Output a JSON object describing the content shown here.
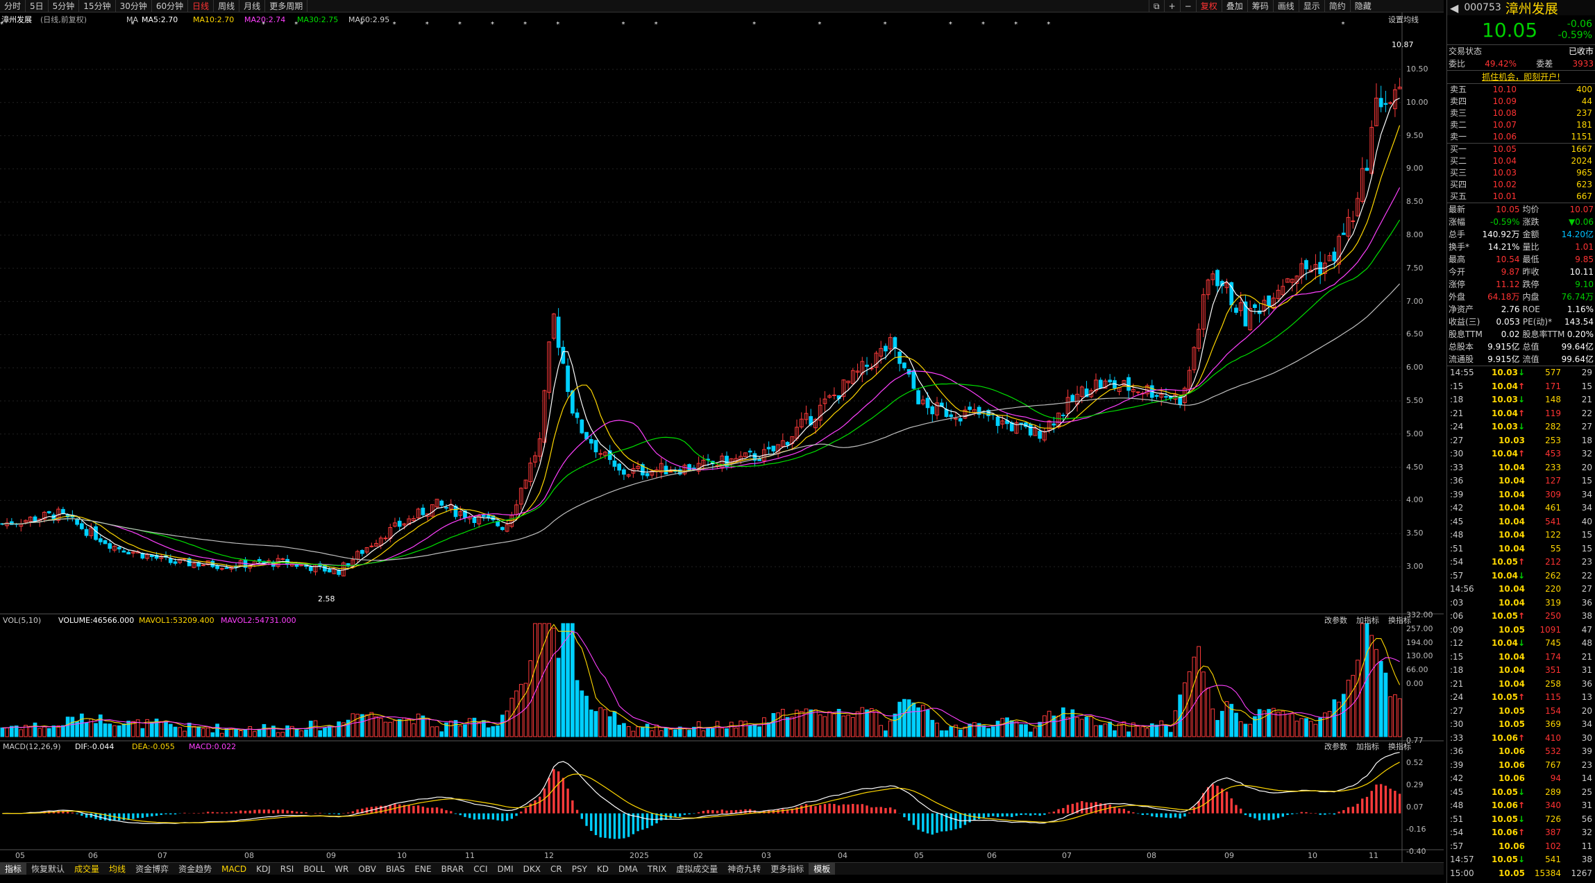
{
  "period_tabs": [
    "分时",
    "5日",
    "5分钟",
    "15分钟",
    "30分钟",
    "60分钟",
    "日线",
    "周线",
    "月线",
    "更多周期"
  ],
  "active_period": "日线",
  "toolbar_right": [
    "复权",
    "叠加",
    "筹码",
    "画线",
    "显示",
    "简约",
    "隐藏"
  ],
  "chart_header": {
    "name": "漳州发展",
    "mode": "(日线,前复权)",
    "ma_label": "MA",
    "ma5": "MA5:2.70",
    "ma10": "MA10:2.70",
    "ma20": "MA20:2.74",
    "ma30": "MA30:2.75",
    "ma60": "MA60:2.95",
    "settings": "设置均线"
  },
  "price_axis": [
    "10.50",
    "10.00",
    "9.50",
    "9.00",
    "8.50",
    "8.00",
    "7.50",
    "7.00",
    "6.50",
    "6.00",
    "5.50",
    "5.00",
    "4.50",
    "4.00",
    "3.50",
    "3.00"
  ],
  "high_marker": "10.87",
  "low_marker": "2.58",
  "vol_header": {
    "name": "VOL(5,10)",
    "volume": "VOLUME:46566.000",
    "mavol1": "MAVOL1:53209.400",
    "mavol2": "MAVOL2:54731.000"
  },
  "vol_axis": [
    "332.00",
    "257.00",
    "194.00",
    "130.00",
    "66.00",
    "0.00"
  ],
  "macd_header": {
    "name": "MACD(12,26,9)",
    "dif": "DIF:-0.044",
    "dea": "DEA:-0.055",
    "macd": "MACD:0.022"
  },
  "macd_axis": [
    "0.77",
    "0.52",
    "0.29",
    "0.07",
    "-0.16",
    "-0.40"
  ],
  "panel_tools": [
    "改参数",
    "加指标",
    "换指标"
  ],
  "x_axis": [
    "05",
    "06",
    "07",
    "08",
    "09",
    "10",
    "11",
    "12",
    "2025",
    "02",
    "03",
    "04",
    "05",
    "06",
    "07",
    "08",
    "09",
    "10",
    "11"
  ],
  "indicator_tabs": [
    "指标",
    "恢复默认",
    "成交量",
    "均线",
    "资金博弈",
    "资金趋势",
    "MACD",
    "KDJ",
    "RSI",
    "BOLL",
    "WR",
    "OBV",
    "BIAS",
    "ENE",
    "BRAR",
    "CCI",
    "DMI",
    "DKX",
    "CR",
    "PSY",
    "KD",
    "DMA",
    "TRIX",
    "虚拟成交量",
    "神奇九转",
    "更多指标",
    "模板"
  ],
  "quote": {
    "code": "000753",
    "name": "漳州发展",
    "price": "10.05",
    "change": "-0.06",
    "pct": "-0.59%",
    "status_label": "交易状态",
    "status": "已收市",
    "wb_label": "委比",
    "wb": "49.42%",
    "wc_label": "委差",
    "wc": "3933",
    "promo": "抓住机会，即刻开户!"
  },
  "asks": [
    {
      "label": "卖五",
      "price": "10.10",
      "vol": "400"
    },
    {
      "label": "卖四",
      "price": "10.09",
      "vol": "44"
    },
    {
      "label": "卖三",
      "price": "10.08",
      "vol": "237"
    },
    {
      "label": "卖二",
      "price": "10.07",
      "vol": "181"
    },
    {
      "label": "卖一",
      "price": "10.06",
      "vol": "1151"
    }
  ],
  "bids": [
    {
      "label": "买一",
      "price": "10.05",
      "vol": "1667"
    },
    {
      "label": "买二",
      "price": "10.04",
      "vol": "2024"
    },
    {
      "label": "买三",
      "price": "10.03",
      "vol": "965"
    },
    {
      "label": "买四",
      "price": "10.02",
      "vol": "623"
    },
    {
      "label": "买五",
      "price": "10.01",
      "vol": "667"
    }
  ],
  "stats": [
    {
      "k1": "最新",
      "v1": "10.05",
      "c1": "red",
      "k2": "均价",
      "v2": "10.07",
      "c2": "red"
    },
    {
      "k1": "涨幅",
      "v1": "-0.59%",
      "c1": "grn",
      "k2": "涨跌",
      "v2": "▼0.06",
      "c2": "grn"
    },
    {
      "k1": "总手",
      "v1": "140.92万",
      "c1": "wht",
      "k2": "金额",
      "v2": "14.20亿",
      "c2": "cyn"
    },
    {
      "k1": "换手*",
      "v1": "14.21%",
      "c1": "wht",
      "k2": "量比",
      "v2": "1.01",
      "c2": "red"
    },
    {
      "k1": "最高",
      "v1": "10.54",
      "c1": "red",
      "k2": "最低",
      "v2": "9.85",
      "c2": "red"
    },
    {
      "k1": "今开",
      "v1": "9.87",
      "c1": "red",
      "k2": "昨收",
      "v2": "10.11",
      "c2": "wht"
    },
    {
      "k1": "涨停",
      "v1": "11.12",
      "c1": "red",
      "k2": "跌停",
      "v2": "9.10",
      "c2": "grn"
    },
    {
      "k1": "外盘",
      "v1": "64.18万",
      "c1": "red",
      "k2": "内盘",
      "v2": "76.74万",
      "c2": "grn"
    },
    {
      "k1": "净资产",
      "v1": "2.76",
      "c1": "wht",
      "k2": "ROE",
      "v2": "1.16%",
      "c2": "wht"
    },
    {
      "k1": "收益(三)",
      "v1": "0.053",
      "c1": "wht",
      "k2": "PE(动)*",
      "v2": "143.54",
      "c2": "wht"
    },
    {
      "k1": "股息TTM",
      "v1": "0.02",
      "c1": "wht",
      "k2": "股息率TTM",
      "v2": "0.20%",
      "c2": "wht"
    },
    {
      "k1": "总股本",
      "v1": "9.915亿",
      "c1": "wht",
      "k2": "总值",
      "v2": "99.64亿",
      "c2": "wht"
    },
    {
      "k1": "流通股",
      "v1": "9.915亿",
      "c1": "wht",
      "k2": "流值",
      "v2": "99.64亿",
      "c2": "wht"
    }
  ],
  "ticks": [
    {
      "t": "14:55",
      "p": "10.03",
      "a": "↓",
      "v": "577",
      "vc": "yel",
      "n": "29"
    },
    {
      "t": ":15",
      "p": "10.04",
      "a": "↑",
      "v": "171",
      "vc": "red",
      "n": "15"
    },
    {
      "t": ":18",
      "p": "10.03",
      "a": "↓",
      "v": "148",
      "vc": "yel",
      "n": "21"
    },
    {
      "t": ":21",
      "p": "10.04",
      "a": "↑",
      "v": "119",
      "vc": "red",
      "n": "22"
    },
    {
      "t": ":24",
      "p": "10.03",
      "a": "↓",
      "v": "282",
      "vc": "yel",
      "n": "27"
    },
    {
      "t": ":27",
      "p": "10.03",
      "a": "",
      "v": "253",
      "vc": "yel",
      "n": "18"
    },
    {
      "t": ":30",
      "p": "10.04",
      "a": "↑",
      "v": "453",
      "vc": "red",
      "n": "32"
    },
    {
      "t": ":33",
      "p": "10.04",
      "a": "",
      "v": "233",
      "vc": "yel",
      "n": "20"
    },
    {
      "t": ":36",
      "p": "10.04",
      "a": "",
      "v": "127",
      "vc": "red",
      "n": "15"
    },
    {
      "t": ":39",
      "p": "10.04",
      "a": "",
      "v": "309",
      "vc": "red",
      "n": "34"
    },
    {
      "t": ":42",
      "p": "10.04",
      "a": "",
      "v": "461",
      "vc": "yel",
      "n": "34"
    },
    {
      "t": ":45",
      "p": "10.04",
      "a": "",
      "v": "541",
      "vc": "red",
      "n": "40"
    },
    {
      "t": ":48",
      "p": "10.04",
      "a": "",
      "v": "122",
      "vc": "yel",
      "n": "15"
    },
    {
      "t": ":51",
      "p": "10.04",
      "a": "",
      "v": "55",
      "vc": "yel",
      "n": "15"
    },
    {
      "t": ":54",
      "p": "10.05",
      "a": "↑",
      "v": "212",
      "vc": "red",
      "n": "23"
    },
    {
      "t": ":57",
      "p": "10.04",
      "a": "↓",
      "v": "262",
      "vc": "yel",
      "n": "22"
    },
    {
      "t": "14:56",
      "p": "10.04",
      "a": "",
      "v": "220",
      "vc": "yel",
      "n": "27"
    },
    {
      "t": ":03",
      "p": "10.04",
      "a": "",
      "v": "319",
      "vc": "yel",
      "n": "36"
    },
    {
      "t": ":06",
      "p": "10.05",
      "a": "↑",
      "v": "250",
      "vc": "red",
      "n": "38"
    },
    {
      "t": ":09",
      "p": "10.05",
      "a": "",
      "v": "1091",
      "vc": "red",
      "n": "47"
    },
    {
      "t": ":12",
      "p": "10.04",
      "a": "↓",
      "v": "745",
      "vc": "yel",
      "n": "48"
    },
    {
      "t": ":15",
      "p": "10.04",
      "a": "",
      "v": "174",
      "vc": "red",
      "n": "21"
    },
    {
      "t": ":18",
      "p": "10.04",
      "a": "",
      "v": "351",
      "vc": "red",
      "n": "31"
    },
    {
      "t": ":21",
      "p": "10.04",
      "a": "",
      "v": "258",
      "vc": "yel",
      "n": "36"
    },
    {
      "t": ":24",
      "p": "10.05",
      "a": "↑",
      "v": "115",
      "vc": "red",
      "n": "13"
    },
    {
      "t": ":27",
      "p": "10.05",
      "a": "",
      "v": "154",
      "vc": "red",
      "n": "20"
    },
    {
      "t": ":30",
      "p": "10.05",
      "a": "",
      "v": "369",
      "vc": "yel",
      "n": "34"
    },
    {
      "t": ":33",
      "p": "10.06",
      "a": "↑",
      "v": "410",
      "vc": "red",
      "n": "30"
    },
    {
      "t": ":36",
      "p": "10.06",
      "a": "",
      "v": "532",
      "vc": "red",
      "n": "39"
    },
    {
      "t": ":39",
      "p": "10.06",
      "a": "",
      "v": "767",
      "vc": "yel",
      "n": "23"
    },
    {
      "t": ":42",
      "p": "10.06",
      "a": "",
      "v": "94",
      "vc": "red",
      "n": "14"
    },
    {
      "t": ":45",
      "p": "10.05",
      "a": "↓",
      "v": "289",
      "vc": "yel",
      "n": "25"
    },
    {
      "t": ":48",
      "p": "10.06",
      "a": "↑",
      "v": "340",
      "vc": "red",
      "n": "31"
    },
    {
      "t": ":51",
      "p": "10.05",
      "a": "↓",
      "v": "726",
      "vc": "yel",
      "n": "56"
    },
    {
      "t": ":54",
      "p": "10.06",
      "a": "↑",
      "v": "387",
      "vc": "red",
      "n": "32"
    },
    {
      "t": ":57",
      "p": "10.06",
      "a": "",
      "v": "102",
      "vc": "red",
      "n": "11"
    },
    {
      "t": "14:57",
      "p": "10.05",
      "a": "↓",
      "v": "541",
      "vc": "yel",
      "n": "38"
    },
    {
      "t": "15:00",
      "p": "10.05",
      "a": "",
      "v": "15384",
      "vc": "yel",
      "n": "1267"
    }
  ],
  "colors": {
    "up": "#ff3b3b",
    "down": "#00d0ff",
    "ma5": "#ffffff",
    "ma10": "#ffd700",
    "ma20": "#ff40ff",
    "ma30": "#00e000",
    "ma60": "#c0c0c0"
  },
  "chart_data": {
    "type": "candlestick",
    "price_range": [
      2.58,
      10.87
    ],
    "keypoints": [
      {
        "x": 0,
        "p": 3.4
      },
      {
        "x": 0.04,
        "p": 3.55
      },
      {
        "x": 0.08,
        "p": 3.05
      },
      {
        "x": 0.12,
        "p": 2.8
      },
      {
        "x": 0.16,
        "p": 2.75
      },
      {
        "x": 0.2,
        "p": 2.8
      },
      {
        "x": 0.24,
        "p": 2.65
      },
      {
        "x": 0.27,
        "p": 3.2
      },
      {
        "x": 0.31,
        "p": 3.7
      },
      {
        "x": 0.36,
        "p": 3.35
      },
      {
        "x": 0.385,
        "p": 4.7
      },
      {
        "x": 0.394,
        "p": 6.7
      },
      {
        "x": 0.41,
        "p": 5.0
      },
      {
        "x": 0.44,
        "p": 4.2
      },
      {
        "x": 0.5,
        "p": 4.3
      },
      {
        "x": 0.55,
        "p": 4.5
      },
      {
        "x": 0.6,
        "p": 5.5
      },
      {
        "x": 0.635,
        "p": 6.2
      },
      {
        "x": 0.66,
        "p": 5.2
      },
      {
        "x": 0.7,
        "p": 5.1
      },
      {
        "x": 0.74,
        "p": 4.8
      },
      {
        "x": 0.78,
        "p": 5.6
      },
      {
        "x": 0.82,
        "p": 5.5
      },
      {
        "x": 0.845,
        "p": 5.35
      },
      {
        "x": 0.865,
        "p": 7.4
      },
      {
        "x": 0.89,
        "p": 6.6
      },
      {
        "x": 0.92,
        "p": 7.3
      },
      {
        "x": 0.95,
        "p": 7.5
      },
      {
        "x": 0.97,
        "p": 8.4
      },
      {
        "x": 0.985,
        "p": 10.1
      },
      {
        "x": 0.993,
        "p": 10.0
      },
      {
        "x": 1,
        "p": 10.05
      }
    ]
  }
}
